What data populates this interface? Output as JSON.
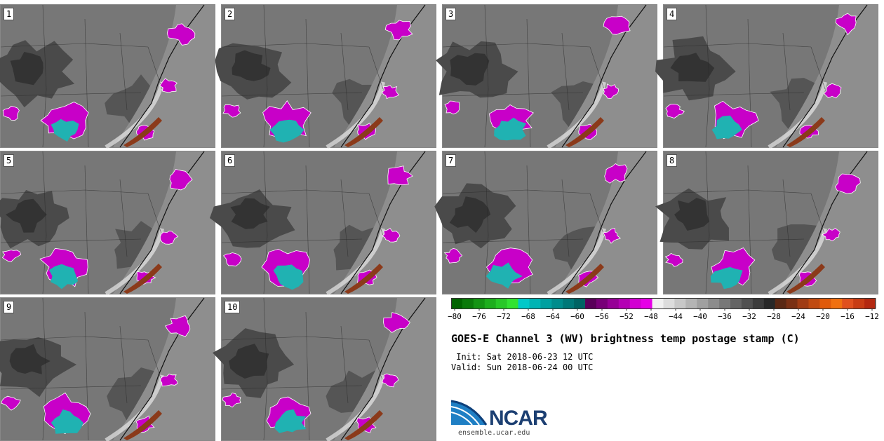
{
  "panels": [
    {
      "label": "1"
    },
    {
      "label": "2"
    },
    {
      "label": "3"
    },
    {
      "label": "4"
    },
    {
      "label": "5"
    },
    {
      "label": "6"
    },
    {
      "label": "7"
    },
    {
      "label": "8"
    },
    {
      "label": "9"
    },
    {
      "label": "10"
    }
  ],
  "colorbar": {
    "ticks": [
      "−80",
      "−76",
      "−72",
      "−68",
      "−64",
      "−60",
      "−56",
      "−52",
      "−48",
      "−44",
      "−40",
      "−36",
      "−32",
      "−28",
      "−24",
      "−20",
      "−16",
      "−12"
    ],
    "colors": [
      "#006400",
      "#0a7a0a",
      "#149414",
      "#1eae1e",
      "#28c828",
      "#32e232",
      "#00c8c8",
      "#00b4b4",
      "#00a0a0",
      "#008c8c",
      "#007878",
      "#006464",
      "#5a005a",
      "#780078",
      "#960096",
      "#b400b4",
      "#d200d2",
      "#e600e6",
      "#f0f0f0",
      "#dcdcdc",
      "#c8c8c8",
      "#b4b4b4",
      "#a0a0a0",
      "#8c8c8c",
      "#787878",
      "#646464",
      "#505050",
      "#3c3c3c",
      "#282828",
      "#5a2814",
      "#7a3014",
      "#a03c14",
      "#c04a10",
      "#e05a0a",
      "#f07010",
      "#e0501e",
      "#c83c14",
      "#b42810"
    ]
  },
  "title": "GOES-E Channel 3 (WV) brightness temp postage stamp (C)",
  "init": " Init: Sat 2018-06-23 12 UTC",
  "valid": "Valid: Sun 2018-06-24 00 UTC",
  "logo": {
    "name": "NCAR",
    "url": "ensemble.ucar.edu"
  }
}
